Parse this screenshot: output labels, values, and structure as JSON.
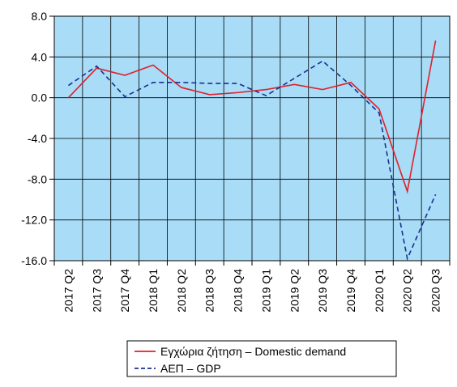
{
  "chart_data": {
    "type": "line",
    "categories": [
      "2017 Q2",
      "2017 Q3",
      "2017 Q4",
      "2018 Q1",
      "2018 Q2",
      "2018 Q3",
      "2018 Q4",
      "2019 Q1",
      "2019 Q2",
      "2019 Q3",
      "2019 Q4",
      "2020 Q1",
      "2020 Q2",
      "2020 Q3"
    ],
    "y_ticks": [
      "8.0",
      "4.0",
      "0.0",
      "-4.0",
      "-8.0",
      "-12.0",
      "-16.0"
    ],
    "ylim": [
      -16,
      8
    ],
    "grid": true,
    "legend_position": "bottom",
    "series": [
      {
        "name": "Εγχώρια ζήτηση – Domestic demand",
        "style": "solid",
        "color": "#e0202a",
        "values": [
          0.0,
          2.9,
          2.2,
          3.2,
          1.0,
          0.3,
          0.5,
          0.8,
          1.3,
          0.8,
          1.5,
          -1.1,
          -9.2,
          5.6
        ]
      },
      {
        "name": "ΑΕΠ – GDP",
        "style": "dashed",
        "color": "#1c2f8f",
        "values": [
          1.2,
          3.1,
          0.1,
          1.5,
          1.5,
          1.4,
          1.4,
          0.2,
          1.9,
          3.6,
          1.2,
          -1.5,
          -15.8,
          -9.5
        ]
      }
    ],
    "colors": {
      "plot_background": "#a8dcf7",
      "grid": "#000000"
    }
  }
}
